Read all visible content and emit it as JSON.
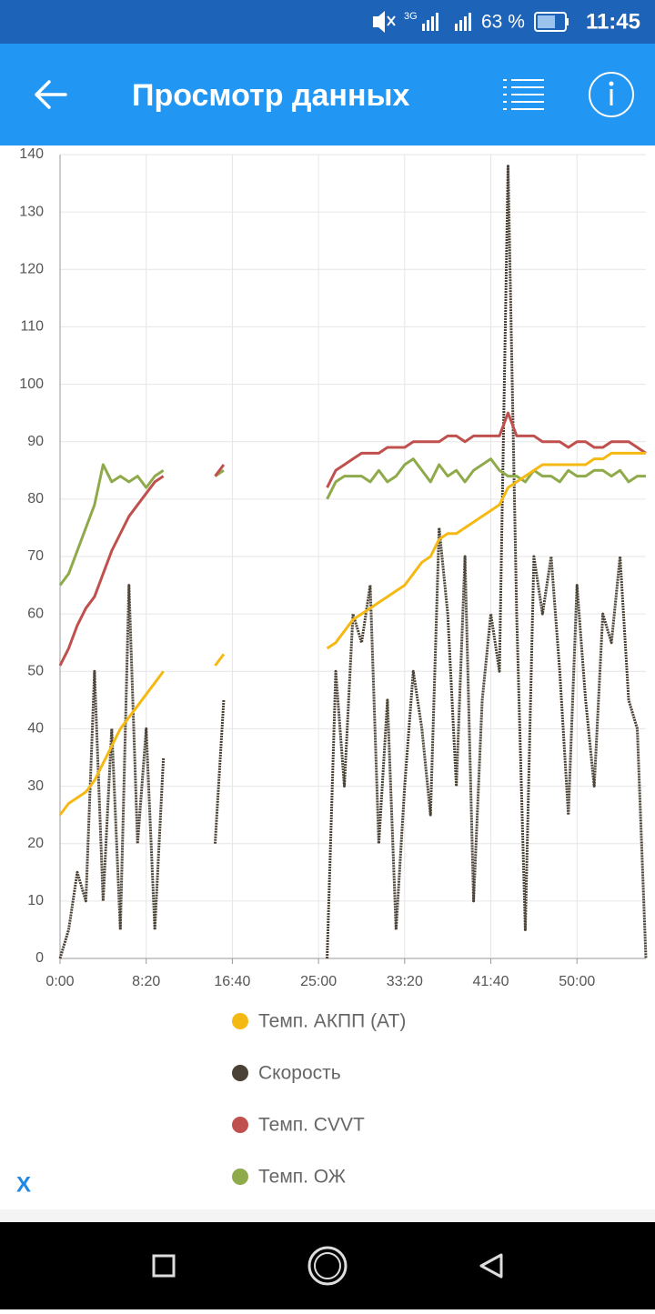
{
  "status_bar": {
    "network": "3G",
    "battery": "63 %",
    "time": "11:45"
  },
  "app_bar": {
    "title": "Просмотр данных"
  },
  "chart_data": {
    "type": "line",
    "x": [
      0,
      50,
      100,
      150,
      200,
      250,
      300,
      350,
      400,
      450,
      500,
      550,
      600,
      650,
      700,
      750,
      800,
      850,
      900,
      950,
      1000,
      1050,
      1100,
      1150,
      1200,
      1250,
      1300,
      1350,
      1400,
      1450,
      1500,
      1550,
      1600,
      1650,
      1700,
      1750,
      1800,
      1850,
      1900,
      1950,
      2000,
      2050,
      2100,
      2150,
      2200,
      2250,
      2300,
      2350,
      2400,
      2450,
      2500,
      2550,
      2600,
      2650,
      2700,
      2750,
      2800,
      2850,
      2900,
      2950,
      3000,
      3050,
      3100,
      3150,
      3200,
      3250,
      3300,
      3350,
      3400
    ],
    "series": [
      {
        "name": "Скорость",
        "color": "#4a4236",
        "values": [
          0,
          5,
          15,
          10,
          50,
          10,
          40,
          5,
          65,
          20,
          40,
          5,
          35,
          null,
          null,
          null,
          null,
          null,
          20,
          45,
          null,
          null,
          null,
          null,
          null,
          null,
          null,
          null,
          null,
          null,
          null,
          0,
          50,
          30,
          60,
          55,
          65,
          20,
          45,
          5,
          30,
          50,
          40,
          25,
          75,
          60,
          30,
          70,
          10,
          45,
          60,
          50,
          138,
          60,
          5,
          70,
          60,
          70,
          50,
          25,
          65,
          45,
          30,
          60,
          55,
          70,
          45,
          40,
          0
        ]
      },
      {
        "name": "Темп. ОЖ",
        "color": "#8faa4a",
        "values": [
          65,
          67,
          71,
          75,
          79,
          86,
          83,
          84,
          83,
          84,
          82,
          84,
          85,
          null,
          null,
          null,
          null,
          null,
          84,
          85,
          null,
          null,
          null,
          null,
          null,
          null,
          null,
          null,
          null,
          null,
          null,
          80,
          83,
          84,
          84,
          84,
          83,
          85,
          83,
          84,
          86,
          87,
          85,
          83,
          86,
          84,
          85,
          83,
          85,
          86,
          87,
          85,
          84,
          84,
          83,
          85,
          84,
          84,
          83,
          85,
          84,
          84,
          85,
          85,
          84,
          85,
          83,
          84,
          84
        ]
      },
      {
        "name": "Темп. CVVT",
        "color": "#c0504d",
        "values": [
          51,
          54,
          58,
          61,
          63,
          67,
          71,
          74,
          77,
          79,
          81,
          83,
          84,
          null,
          null,
          null,
          null,
          null,
          84,
          86,
          null,
          null,
          null,
          null,
          null,
          null,
          null,
          null,
          null,
          null,
          null,
          82,
          85,
          86,
          87,
          88,
          88,
          88,
          89,
          89,
          89,
          90,
          90,
          90,
          90,
          91,
          91,
          90,
          91,
          91,
          91,
          91,
          95,
          91,
          91,
          91,
          90,
          90,
          90,
          89,
          90,
          90,
          89,
          89,
          90,
          90,
          90,
          89,
          88
        ]
      },
      {
        "name": "Темп. АКПП (AT)",
        "color": "#f5b914",
        "values": [
          25,
          27,
          28,
          29,
          31,
          34,
          37,
          40,
          42,
          44,
          46,
          48,
          50,
          null,
          null,
          null,
          null,
          null,
          51,
          53,
          null,
          null,
          null,
          null,
          null,
          null,
          null,
          null,
          null,
          null,
          null,
          54,
          55,
          57,
          59,
          60,
          61,
          62,
          63,
          64,
          65,
          67,
          69,
          70,
          73,
          74,
          74,
          75,
          76,
          77,
          78,
          79,
          82,
          83,
          84,
          85,
          86,
          86,
          86,
          86,
          86,
          86,
          87,
          87,
          88,
          88,
          88,
          88,
          88
        ]
      }
    ],
    "legend_order": [
      3,
      0,
      2,
      1
    ],
    "xlim": [
      0,
      3400
    ],
    "xticks": [
      {
        "value": 0,
        "label": "0:00"
      },
      {
        "value": 500,
        "label": "8:20"
      },
      {
        "value": 1000,
        "label": "16:40"
      },
      {
        "value": 1500,
        "label": "25:00"
      },
      {
        "value": 2000,
        "label": "33:20"
      },
      {
        "value": 2500,
        "label": "41:40"
      },
      {
        "value": 3000,
        "label": "50:00"
      }
    ],
    "ylim": [
      0,
      140
    ],
    "yticks": [
      0,
      10,
      20,
      30,
      40,
      50,
      60,
      70,
      80,
      90,
      100,
      110,
      120,
      130,
      140
    ],
    "grid": true
  },
  "close_button": "X"
}
